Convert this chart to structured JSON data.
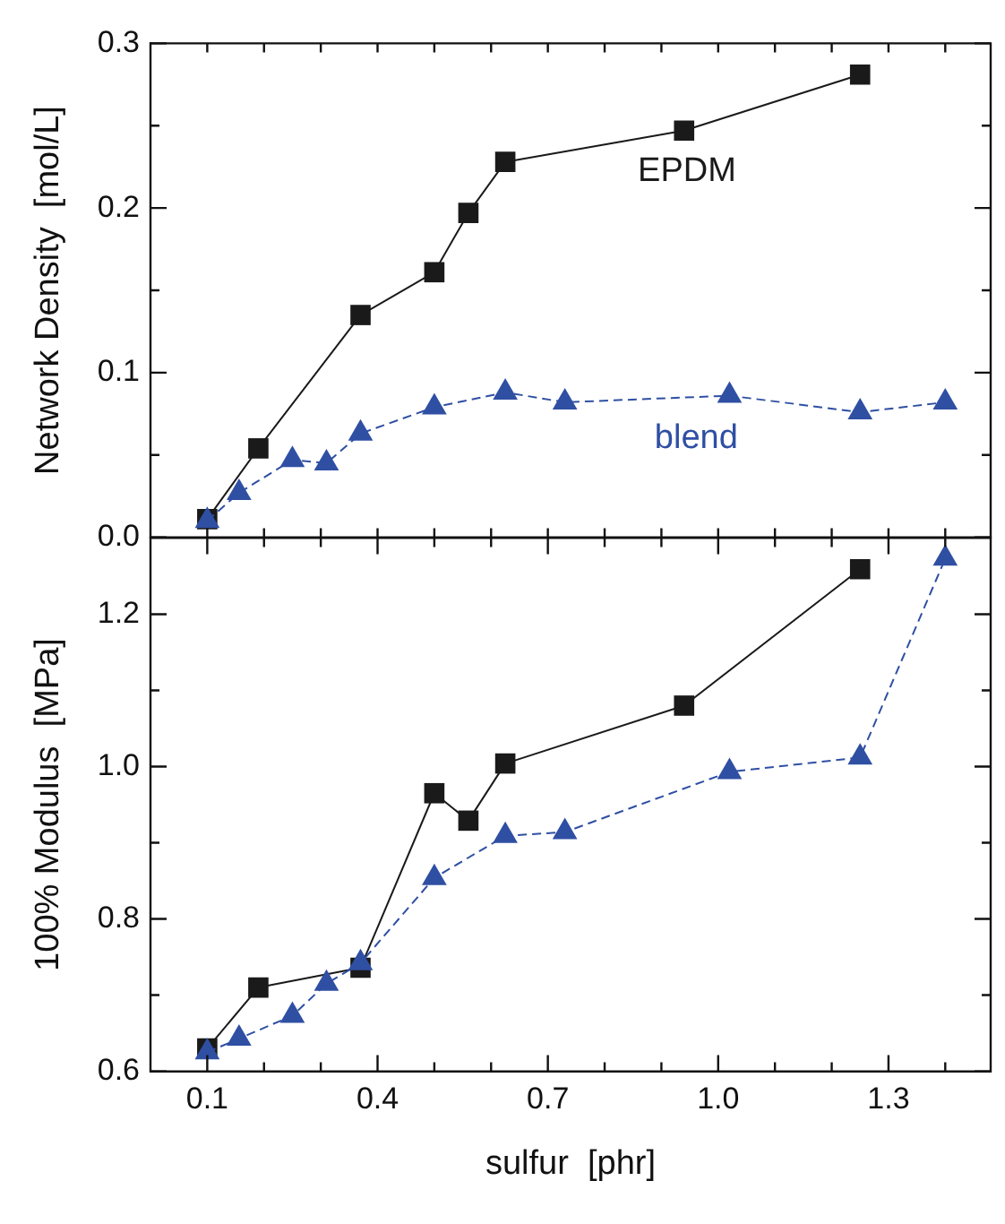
{
  "chart_data": [
    {
      "type": "line",
      "ylabel": "Network Density  [mol/L]",
      "xlim": [
        0,
        1.48
      ],
      "ylim": [
        0,
        0.3
      ],
      "tick_labels": "y",
      "grid": false,
      "legend": false,
      "xticks": [
        {
          "value": 0.1,
          "label": null
        },
        {
          "value": 0.2,
          "label": null
        },
        {
          "value": 0.3,
          "label": null
        },
        {
          "value": 0.4,
          "label": null
        },
        {
          "value": 0.5,
          "label": null
        },
        {
          "value": 0.6,
          "label": null
        },
        {
          "value": 0.7,
          "label": null
        },
        {
          "value": 0.8,
          "label": null
        },
        {
          "value": 0.9,
          "label": null
        },
        {
          "value": 1.0,
          "label": null
        },
        {
          "value": 1.1,
          "label": null
        },
        {
          "value": 1.2,
          "label": null
        },
        {
          "value": 1.3,
          "label": null
        },
        {
          "value": 1.4,
          "label": null
        }
      ],
      "yticks": [
        {
          "value": 0,
          "label": "0.0"
        },
        {
          "value": 0.05,
          "label": null
        },
        0.1,
        {
          "value": 0.15,
          "label": null
        },
        0.2,
        {
          "value": 0.25,
          "label": null
        },
        0.3
      ],
      "series": [
        {
          "name": "EPDM",
          "color": "#1a1a1a",
          "marker": "square",
          "line_style": "solid",
          "x": [
            0.1,
            0.19,
            0.37,
            0.5,
            0.56,
            0.625,
            0.94,
            1.25
          ],
          "values": [
            0.011,
            0.054,
            0.135,
            0.161,
            0.197,
            0.228,
            0.247,
            0.281
          ]
        },
        {
          "name": "blend",
          "color": "#2f4fa3",
          "marker": "triangle",
          "line_style": "dashed",
          "x": [
            0.1,
            0.156,
            0.25,
            0.31,
            0.37,
            0.5,
            0.625,
            0.73,
            1.02,
            1.25,
            1.4
          ],
          "values": [
            0.01,
            0.027,
            0.047,
            0.045,
            0.063,
            0.079,
            0.088,
            0.082,
            0.086,
            0.076,
            0.082
          ]
        }
      ]
    },
    {
      "type": "line",
      "ylabel": "100% Modulus  [MPa]",
      "xlabel": "sulfur  [phr]",
      "xlim": [
        0,
        1.48
      ],
      "ylim": [
        0.6,
        1.3
      ],
      "grid": false,
      "legend": false,
      "xticks": [
        0.1,
        {
          "value": 0.2,
          "label": null
        },
        {
          "value": 0.3,
          "label": null
        },
        0.4,
        {
          "value": 0.5,
          "label": null
        },
        {
          "value": 0.6,
          "label": null
        },
        0.7,
        {
          "value": 0.8,
          "label": null
        },
        {
          "value": 0.9,
          "label": null
        },
        {
          "value": 1.0,
          "label": "1.0"
        },
        {
          "value": 1.1,
          "label": null
        },
        {
          "value": 1.2,
          "label": null
        },
        1.3,
        {
          "value": 1.4,
          "label": null
        }
      ],
      "yticks": [
        0.6,
        {
          "value": 0.7,
          "label": null
        },
        0.8,
        {
          "value": 0.9,
          "label": null
        },
        {
          "value": 1.0,
          "label": "1.0"
        },
        {
          "value": 1.1,
          "label": null
        },
        1.2
      ],
      "series": [
        {
          "color": "#1a1a1a",
          "marker": "square",
          "line_style": "solid",
          "x": [
            0.1,
            0.19,
            0.37,
            0.5,
            0.56,
            0.625,
            0.94,
            1.25
          ],
          "values": [
            0.63,
            0.71,
            0.736,
            0.965,
            0.929,
            1.004,
            1.08,
            1.259
          ]
        },
        {
          "color": "#2f4fa3",
          "marker": "triangle",
          "line_style": "dashed",
          "x": [
            0.1,
            0.156,
            0.25,
            0.31,
            0.37,
            0.5,
            0.625,
            0.73,
            1.02,
            1.25,
            1.4
          ],
          "values": [
            0.625,
            0.643,
            0.673,
            0.715,
            0.742,
            0.854,
            0.909,
            0.914,
            0.993,
            1.012,
            1.273
          ]
        }
      ]
    }
  ]
}
